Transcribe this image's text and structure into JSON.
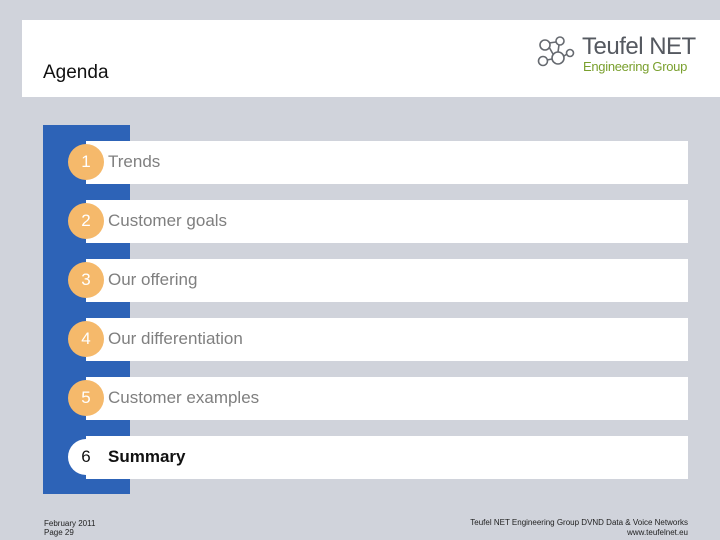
{
  "slide": {
    "title": "Agenda"
  },
  "logo": {
    "name": "Teufel NET",
    "sub": "Engineering Group"
  },
  "agenda": {
    "items": [
      {
        "num": "1",
        "label": "Trends"
      },
      {
        "num": "2",
        "label": "Customer goals"
      },
      {
        "num": "3",
        "label": "Our offering"
      },
      {
        "num": "4",
        "label": "Our differentiation"
      },
      {
        "num": "5",
        "label": "Customer examples"
      },
      {
        "num": "6",
        "label": "Summary"
      }
    ],
    "active_item": "6"
  },
  "footer": {
    "date": "February 2011",
    "page": "Page 29",
    "company_line": "Teufel NET Engineering Group   DVND Data & Voice Networks",
    "website": "www.teufelnet.eu"
  },
  "colors": {
    "background": "#d0d3db",
    "accent_blue": "#2d63b7",
    "circle_orange": "#f5b96b",
    "logo_green": "#7aa02e",
    "logo_grey": "#555960"
  }
}
